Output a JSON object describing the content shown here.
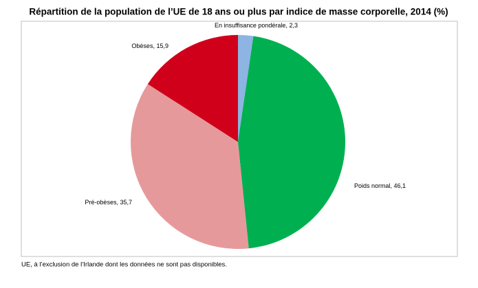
{
  "chart_data": {
    "type": "pie",
    "title": "Répartition de la population de l’UE de 18 ans ou plus par indice de masse corporelle, 2014 (%)",
    "categories": [
      "En insuffisance pondérale",
      "Poids normal",
      "Pré-obèses",
      "Obèses"
    ],
    "values": [
      2.3,
      46.1,
      35.7,
      15.9
    ],
    "value_labels": [
      "2,3",
      "46,1",
      "35,7",
      "15,9"
    ],
    "label_separator": ", ",
    "colors": [
      "#8db4e2",
      "#00b050",
      "#e6999b",
      "#d0001b"
    ],
    "note": "UE, à l’exclusion de l’Irlande dont les données ne sont pas disponibles."
  }
}
